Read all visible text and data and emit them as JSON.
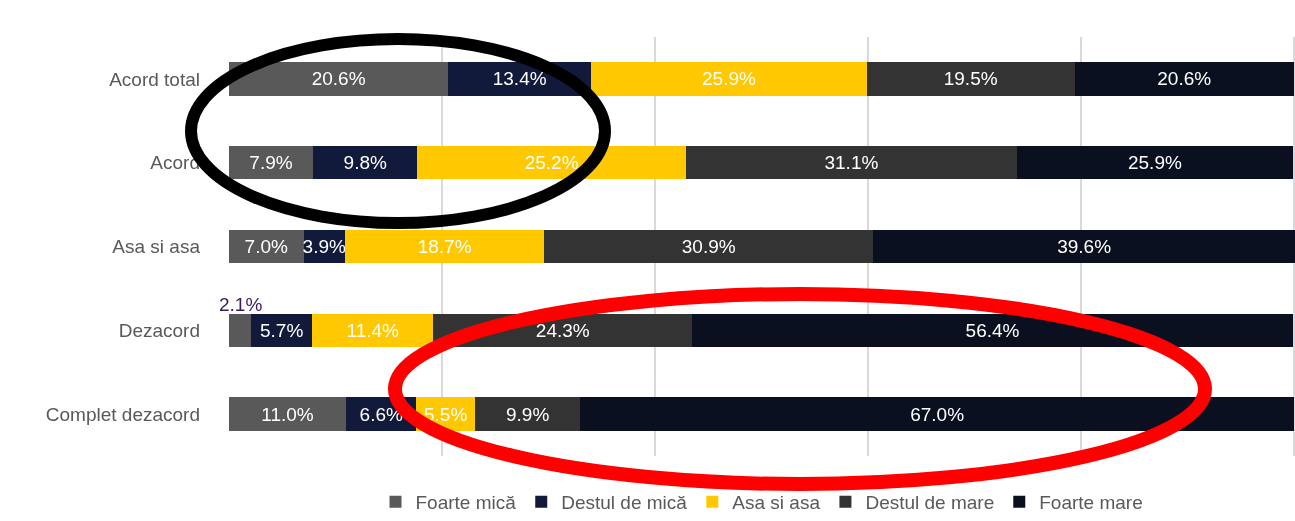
{
  "chart_data": {
    "type": "bar",
    "orientation": "horizontal",
    "stacked": true,
    "categories": [
      "Acord total",
      "Acord",
      "Asa si asa",
      "Dezacord",
      "Complet dezacord"
    ],
    "series": [
      {
        "name": "Foarte mică",
        "color": "#595959",
        "values": [
          20.6,
          7.9,
          7.0,
          2.1,
          11.0
        ],
        "value_labels": [
          "20.6%",
          "7.9%",
          "7.0%",
          "2.1%",
          "11.0%"
        ]
      },
      {
        "name": "Destul de mică",
        "color": "#111a3a",
        "values": [
          13.4,
          9.8,
          3.9,
          5.7,
          6.6
        ],
        "value_labels": [
          "13.4%",
          "9.8%",
          "3.9%",
          "5.7%",
          "6.6%"
        ]
      },
      {
        "name": "Asa si asa",
        "color": "#ffc800",
        "values": [
          25.9,
          25.2,
          18.7,
          11.4,
          5.5
        ],
        "value_labels": [
          "25.9%",
          "25.2%",
          "18.7%",
          "11.4%",
          "5.5%"
        ]
      },
      {
        "name": "Destul de mare",
        "color": "#333333",
        "values": [
          19.5,
          31.1,
          30.9,
          24.3,
          9.9
        ],
        "value_labels": [
          "19.5%",
          "31.1%",
          "30.9%",
          "24.3%",
          "9.9%"
        ]
      },
      {
        "name": "Foarte mare",
        "color": "#0b1020",
        "values": [
          20.6,
          25.9,
          39.6,
          56.4,
          67.0
        ],
        "value_labels": [
          "20.6%",
          "25.9%",
          "39.6%",
          "56.4%",
          "67.0%"
        ]
      }
    ],
    "tick_labels": "y",
    "grid": "x",
    "legend": "bottom"
  }
}
